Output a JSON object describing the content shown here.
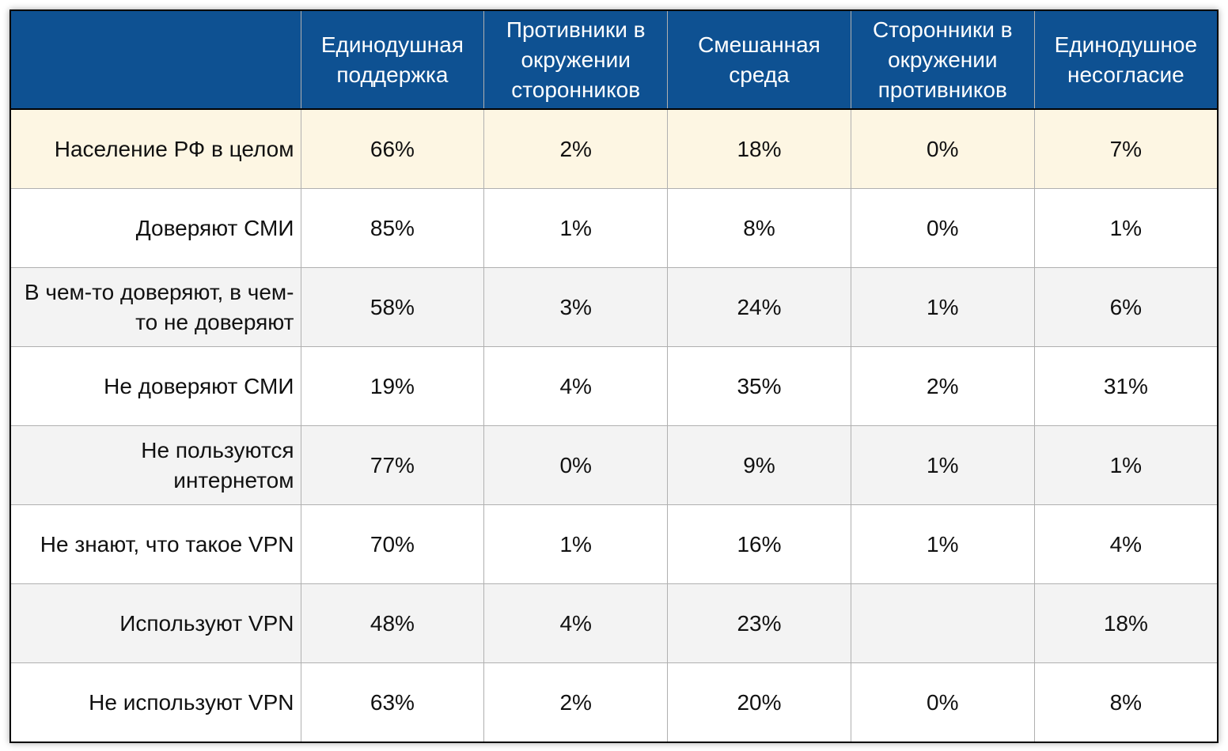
{
  "columns": [
    "",
    "Единодушная поддержка",
    "Противники в окружении сторонников",
    "Смешанная среда",
    "Сторонники в окружении противников",
    "Единодушное несогласие"
  ],
  "rows": [
    {
      "label": "Население РФ в целом",
      "values": [
        "66%",
        "2%",
        "18%",
        "0%",
        "7%"
      ]
    },
    {
      "label": "Доверяют СМИ",
      "values": [
        "85%",
        "1%",
        "8%",
        "0%",
        "1%"
      ]
    },
    {
      "label": "В чем-то доверяют, в чем-то не доверяют",
      "values": [
        "58%",
        "3%",
        "24%",
        "1%",
        "6%"
      ]
    },
    {
      "label": "Не доверяют СМИ",
      "values": [
        "19%",
        "4%",
        "35%",
        "2%",
        "31%"
      ]
    },
    {
      "label": "Не пользуются интернетом",
      "values": [
        "77%",
        "0%",
        "9%",
        "1%",
        "1%"
      ]
    },
    {
      "label": "Не знают, что такое VPN",
      "values": [
        "70%",
        "1%",
        "16%",
        "1%",
        "4%"
      ]
    },
    {
      "label": "Используют VPN",
      "values": [
        "48%",
        "4%",
        "23%",
        "",
        "18%"
      ]
    },
    {
      "label": "Не используют VPN",
      "values": [
        "63%",
        "2%",
        "20%",
        "0%",
        "8%"
      ]
    }
  ],
  "colors": {
    "header_bg": "#0e5192",
    "highlight_row": "#fdf6e3",
    "alt_row": "#f3f3f3"
  }
}
